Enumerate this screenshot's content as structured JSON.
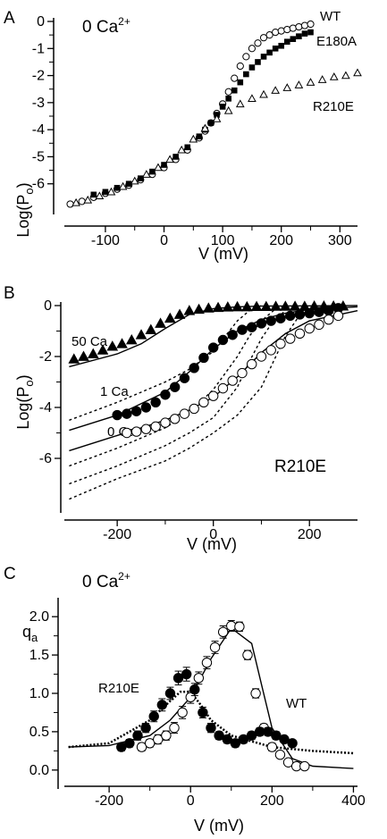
{
  "chart_data": [
    {
      "panel_letter": "A",
      "type": "scatter",
      "condition": "0 Ca",
      "condition_sup": "2+",
      "xlabel": "V (mV)",
      "ylabel": "Log(P",
      "ylabel_sub": "o",
      "ylabel_suffix": ")",
      "xlim": [
        -170,
        330
      ],
      "ylim": [
        -7,
        0
      ],
      "xticks": [
        -100,
        0,
        100,
        200,
        300
      ],
      "xtick_labels": [
        "-100",
        "0",
        "100",
        "200",
        "300"
      ],
      "yticks": [
        0,
        -1,
        -2,
        -3,
        -4,
        -5,
        -6
      ],
      "ytick_labels": [
        "0",
        "-1",
        "-2",
        "-3",
        "-4",
        "-5",
        "-6"
      ],
      "grid": false,
      "series": [
        {
          "name": "WT",
          "marker": "open-circle",
          "x": [
            -160,
            -140,
            -120,
            -100,
            -80,
            -60,
            -40,
            -20,
            0,
            20,
            40,
            60,
            70,
            80,
            90,
            100,
            110,
            120,
            130,
            140,
            150,
            160,
            170,
            180,
            190,
            200,
            210,
            220,
            230,
            240,
            250
          ],
          "y": [
            -6.75,
            -6.65,
            -6.5,
            -6.35,
            -6.2,
            -6.05,
            -5.85,
            -5.65,
            -5.4,
            -5.1,
            -4.75,
            -4.3,
            -4.05,
            -3.75,
            -3.4,
            -3.05,
            -2.6,
            -2.1,
            -1.65,
            -1.3,
            -1.0,
            -0.8,
            -0.6,
            -0.5,
            -0.4,
            -0.35,
            -0.3,
            -0.25,
            -0.2,
            -0.15,
            -0.1
          ]
        },
        {
          "name": "E180A",
          "marker": "filled-square",
          "x": [
            -120,
            -100,
            -80,
            -60,
            -40,
            -20,
            0,
            20,
            40,
            60,
            70,
            80,
            90,
            100,
            110,
            120,
            130,
            140,
            150,
            160,
            170,
            180,
            190,
            200,
            210,
            220,
            230,
            240,
            250
          ],
          "y": [
            -6.4,
            -6.3,
            -6.15,
            -6.0,
            -5.8,
            -5.55,
            -5.3,
            -5.0,
            -4.65,
            -4.25,
            -4.0,
            -3.75,
            -3.45,
            -3.15,
            -2.85,
            -2.55,
            -2.25,
            -1.95,
            -1.7,
            -1.5,
            -1.3,
            -1.15,
            -1.0,
            -0.9,
            -0.75,
            -0.65,
            -0.55,
            -0.45,
            -0.4
          ]
        },
        {
          "name": "R210E",
          "marker": "open-triangle",
          "x": [
            -150,
            -130,
            -110,
            -90,
            -70,
            -50,
            -30,
            -10,
            10,
            30,
            50,
            70,
            90,
            110,
            130,
            150,
            170,
            190,
            210,
            230,
            250,
            270,
            290,
            310,
            330
          ],
          "y": [
            -6.7,
            -6.6,
            -6.45,
            -6.3,
            -6.1,
            -5.9,
            -5.65,
            -5.4,
            -5.1,
            -4.75,
            -4.35,
            -3.95,
            -3.6,
            -3.3,
            -3.05,
            -2.85,
            -2.7,
            -2.55,
            -2.45,
            -2.35,
            -2.25,
            -2.15,
            -2.05,
            -2.0,
            -1.9
          ]
        }
      ]
    },
    {
      "panel_letter": "B",
      "type": "line",
      "condition": "R210E",
      "xlabel": "V (mV)",
      "ylabel": "Log(P",
      "ylabel_sub": "o",
      "ylabel_suffix": ")",
      "xlim": [
        -310,
        300
      ],
      "ylim": [
        -8,
        0
      ],
      "xticks": [
        -200,
        0,
        200
      ],
      "xtick_labels": [
        "-200",
        "0",
        "200"
      ],
      "yticks": [
        0,
        -2,
        -4,
        -6
      ],
      "ytick_labels": [
        "0",
        "-2",
        "-4",
        "-6"
      ],
      "grid": false,
      "annotations": [
        "50 Ca",
        "1 Ca",
        "0 Ca"
      ],
      "series": [
        {
          "name": "50 Ca",
          "marker": "filled-triangle",
          "x": [
            -290,
            -270,
            -250,
            -230,
            -210,
            -190,
            -170,
            -150,
            -130,
            -110,
            -90,
            -70,
            -50,
            -30,
            -10,
            10,
            30,
            50,
            70,
            90,
            110,
            130,
            150,
            170,
            190,
            210,
            230,
            250,
            270
          ],
          "y": [
            -2.1,
            -2.0,
            -1.9,
            -1.75,
            -1.6,
            -1.5,
            -1.35,
            -1.15,
            -0.95,
            -0.7,
            -0.5,
            -0.35,
            -0.2,
            -0.15,
            -0.1,
            -0.08,
            -0.06,
            -0.05,
            -0.05,
            -0.04,
            -0.04,
            -0.03,
            -0.03,
            -0.03,
            -0.03,
            -0.02,
            -0.02,
            -0.02,
            -0.02
          ]
        },
        {
          "name": "1 Ca",
          "marker": "filled-circle",
          "x": [
            -200,
            -180,
            -160,
            -140,
            -120,
            -100,
            -80,
            -60,
            -40,
            -20,
            0,
            20,
            40,
            60,
            80,
            100,
            120,
            140,
            160,
            180,
            200,
            220,
            240,
            260
          ],
          "y": [
            -4.3,
            -4.25,
            -4.15,
            -4.0,
            -3.8,
            -3.5,
            -3.2,
            -2.85,
            -2.45,
            -2.05,
            -1.65,
            -1.35,
            -1.15,
            -0.95,
            -0.85,
            -0.7,
            -0.6,
            -0.5,
            -0.4,
            -0.35,
            -0.3,
            -0.25,
            -0.2,
            -0.1
          ]
        },
        {
          "name": "0 Ca",
          "marker": "open-circle",
          "x": [
            -180,
            -160,
            -140,
            -120,
            -100,
            -80,
            -60,
            -40,
            -20,
            0,
            20,
            40,
            60,
            80,
            100,
            120,
            140,
            160,
            180,
            200,
            220,
            240,
            260
          ],
          "y": [
            -5.0,
            -4.95,
            -4.85,
            -4.75,
            -4.6,
            -4.45,
            -4.25,
            -4.05,
            -3.8,
            -3.55,
            -3.25,
            -2.95,
            -2.65,
            -2.3,
            -2.0,
            -1.75,
            -1.5,
            -1.3,
            -1.1,
            -0.9,
            -0.75,
            -0.55,
            -0.4
          ]
        }
      ],
      "fit_lines": [
        {
          "style": "solid",
          "x": [
            -300,
            -200,
            -150,
            -100,
            -50,
            0,
            50,
            100,
            200,
            300
          ],
          "y": [
            -2.4,
            -1.9,
            -1.5,
            -0.9,
            -0.35,
            -0.12,
            -0.05,
            -0.02,
            -0.01,
            0
          ]
        },
        {
          "style": "solid",
          "x": [
            -300,
            -200,
            -100,
            -50,
            0,
            50,
            100,
            150,
            200,
            300
          ],
          "y": [
            -4.9,
            -4.3,
            -3.4,
            -2.6,
            -1.7,
            -1.0,
            -0.55,
            -0.3,
            -0.15,
            -0.05
          ]
        },
        {
          "style": "solid",
          "x": [
            -300,
            -200,
            -100,
            -50,
            0,
            50,
            100,
            150,
            200,
            300
          ],
          "y": [
            -5.7,
            -5.1,
            -4.5,
            -4.1,
            -3.6,
            -2.8,
            -1.85,
            -1.1,
            -0.6,
            -0.2
          ]
        },
        {
          "style": "dashed",
          "x": [
            -300,
            -200,
            -100,
            -50,
            0,
            25,
            50,
            75,
            100
          ],
          "y": [
            -4.5,
            -3.8,
            -3.0,
            -2.5,
            -1.8,
            -1.2,
            -0.6,
            -0.2,
            0
          ]
        },
        {
          "style": "dashed",
          "x": [
            -300,
            -200,
            -100,
            -50,
            0,
            50,
            75,
            100,
            125,
            150
          ],
          "y": [
            -6.3,
            -5.6,
            -4.8,
            -4.2,
            -3.3,
            -2.0,
            -1.2,
            -0.6,
            -0.2,
            0
          ]
        },
        {
          "style": "dashed",
          "x": [
            -300,
            -200,
            -100,
            -50,
            0,
            50,
            75,
            100,
            125,
            150
          ],
          "y": [
            -7.0,
            -6.3,
            -5.5,
            -5.0,
            -4.4,
            -3.2,
            -2.2,
            -1.3,
            -0.6,
            -0.2
          ]
        },
        {
          "style": "dashed",
          "x": [
            -300,
            -200,
            -100,
            -50,
            0,
            50,
            100,
            125,
            150,
            175
          ],
          "y": [
            -7.6,
            -6.8,
            -6.1,
            -5.6,
            -5.0,
            -4.3,
            -3.2,
            -2.2,
            -1.2,
            -0.5
          ]
        }
      ]
    },
    {
      "panel_letter": "C",
      "type": "scatter",
      "condition": "0 Ca",
      "condition_sup": "2+",
      "xlabel": "V (mV)",
      "ylabel": "q",
      "ylabel_sub": "a",
      "ylabel_suffix": "",
      "xlim": [
        -310,
        410
      ],
      "ylim": [
        -0.2,
        2.2
      ],
      "xticks": [
        -200,
        0,
        200,
        400
      ],
      "xtick_labels": [
        "-200",
        "0",
        "200",
        "400"
      ],
      "yticks": [
        0.0,
        0.5,
        1.0,
        1.5,
        2.0
      ],
      "ytick_labels": [
        "0.0",
        "0.5",
        "1.0",
        "1.5",
        "2.0"
      ],
      "grid": false,
      "series": [
        {
          "name": "WT",
          "marker": "open-circle",
          "x": [
            -120,
            -100,
            -80,
            -60,
            -40,
            -20,
            0,
            20,
            40,
            60,
            80,
            100,
            120,
            140,
            160,
            180,
            200,
            220,
            240,
            260,
            280
          ],
          "y": [
            0.3,
            0.35,
            0.4,
            0.45,
            0.55,
            0.75,
            0.95,
            1.2,
            1.4,
            1.6,
            1.8,
            1.88,
            1.87,
            1.5,
            1.0,
            0.55,
            0.3,
            0.2,
            0.1,
            0.05,
            0.05
          ],
          "err": [
            0.05,
            0.05,
            0.06,
            0.06,
            0.07,
            0.08,
            0.08,
            0.08,
            0.08,
            0.08,
            0.08,
            0.07,
            0.06,
            0.06,
            0.06,
            0.05,
            0.05,
            0.04,
            0.04,
            0.03,
            0.03
          ]
        },
        {
          "name": "R210E",
          "marker": "filled-circle",
          "x": [
            -170,
            -150,
            -130,
            -110,
            -90,
            -70,
            -50,
            -30,
            -10,
            10,
            30,
            50,
            70,
            90,
            110,
            130,
            150,
            170,
            190,
            210,
            230,
            250
          ],
          "y": [
            0.3,
            0.35,
            0.45,
            0.55,
            0.7,
            0.85,
            1.0,
            1.2,
            1.25,
            1.05,
            0.75,
            0.55,
            0.45,
            0.4,
            0.35,
            0.4,
            0.45,
            0.5,
            0.5,
            0.45,
            0.4,
            0.35
          ],
          "err": [
            0.05,
            0.05,
            0.06,
            0.06,
            0.07,
            0.08,
            0.08,
            0.09,
            0.09,
            0.08,
            0.07,
            0.06,
            0.05,
            0.05,
            0.05,
            0.05,
            0.05,
            0.05,
            0.05,
            0.05,
            0.04,
            0.04
          ]
        }
      ],
      "fit_lines": [
        {
          "style": "solid",
          "x": [
            -300,
            -200,
            -100,
            -50,
            0,
            50,
            100,
            150,
            175,
            200,
            250,
            300,
            400
          ],
          "y": [
            0.3,
            0.32,
            0.45,
            0.65,
            0.95,
            1.45,
            1.85,
            1.65,
            1.1,
            0.55,
            0.15,
            0.05,
            0.02
          ]
        },
        {
          "style": "dotted",
          "x": [
            -300,
            -200,
            -100,
            -50,
            -25,
            0,
            25,
            50,
            100,
            200,
            300,
            400
          ],
          "y": [
            0.3,
            0.35,
            0.65,
            0.9,
            1.02,
            1.02,
            0.85,
            0.65,
            0.45,
            0.3,
            0.25,
            0.22
          ]
        }
      ]
    }
  ]
}
